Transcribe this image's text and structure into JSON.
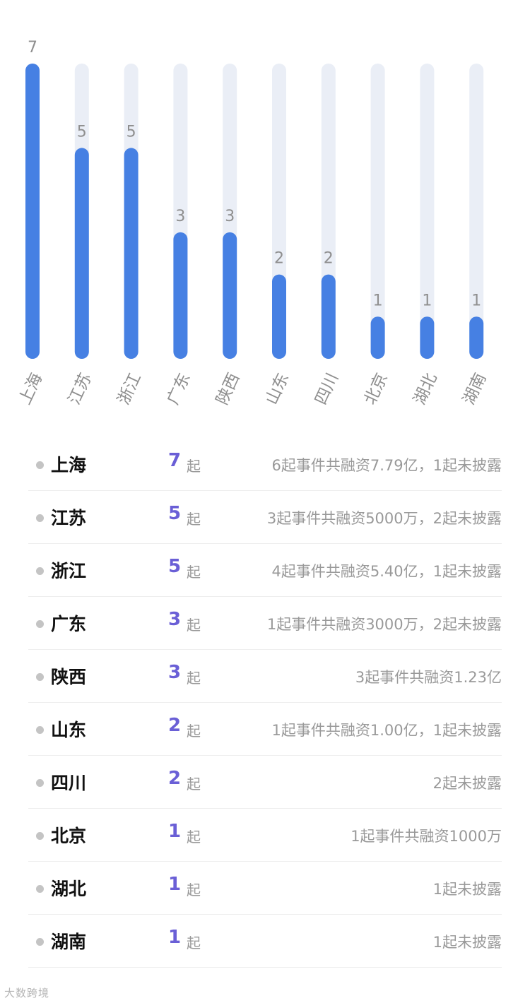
{
  "chart_data": {
    "type": "bar",
    "categories": [
      "上海",
      "江苏",
      "浙江",
      "广东",
      "陕西",
      "山东",
      "四川",
      "北京",
      "湖北",
      "湖南"
    ],
    "values": [
      7,
      5,
      5,
      3,
      3,
      2,
      2,
      1,
      1,
      1
    ],
    "ylim": [
      0,
      7
    ],
    "grid": false,
    "title": "",
    "xlabel": "",
    "ylabel": ""
  },
  "colors": {
    "bar": "#4680e3",
    "track": "#eaeef6",
    "count": "#6a5fd6",
    "muted": "#999999"
  },
  "table": {
    "unit": "起",
    "rows": [
      {
        "region": "上海",
        "count": "7",
        "desc": "6起事件共融资7.79亿，1起未披露"
      },
      {
        "region": "江苏",
        "count": "5",
        "desc": "3起事件共融资5000万，2起未披露"
      },
      {
        "region": "浙江",
        "count": "5",
        "desc": "4起事件共融资5.40亿，1起未披露"
      },
      {
        "region": "广东",
        "count": "3",
        "desc": "1起事件共融资3000万，2起未披露"
      },
      {
        "region": "陕西",
        "count": "3",
        "desc": "3起事件共融资1.23亿"
      },
      {
        "region": "山东",
        "count": "2",
        "desc": "1起事件共融资1.00亿，1起未披露"
      },
      {
        "region": "四川",
        "count": "2",
        "desc": "2起未披露"
      },
      {
        "region": "北京",
        "count": "1",
        "desc": "1起事件共融资1000万"
      },
      {
        "region": "湖北",
        "count": "1",
        "desc": "1起未披露"
      },
      {
        "region": "湖南",
        "count": "1",
        "desc": "1起未披露"
      }
    ]
  },
  "watermark": "大数跨境"
}
